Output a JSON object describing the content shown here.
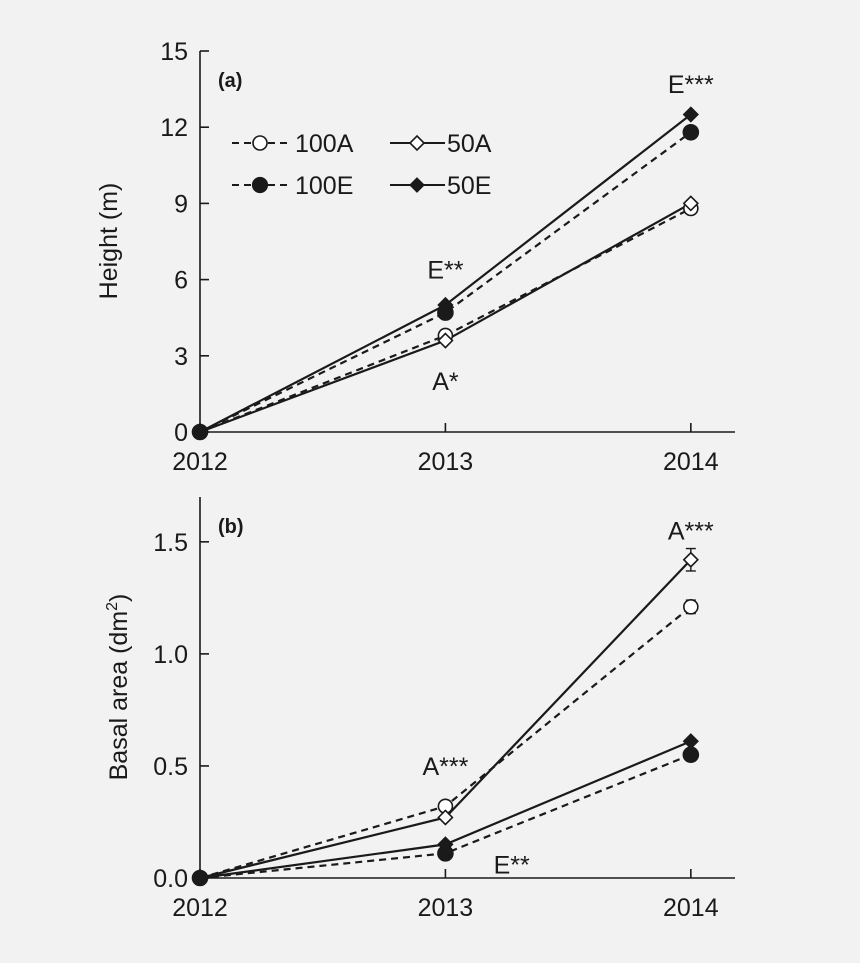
{
  "colors": {
    "background": "#f2f2f2",
    "ink": "#1a1a1a",
    "open_fill": "#ffffff"
  },
  "chart_data": [
    {
      "type": "line",
      "panel_label": "(a)",
      "ylabel": "Height (m)",
      "xlabel": "",
      "x": [
        2012,
        2013,
        2014
      ],
      "xlim": [
        2012,
        2014.18
      ],
      "ylim": [
        0,
        15
      ],
      "yticks": [
        0,
        3,
        6,
        9,
        12,
        15
      ],
      "grid": false,
      "legend_placement": "top-left",
      "series": [
        {
          "name": "100A",
          "values": [
            0,
            3.8,
            8.8
          ],
          "marker": "circle",
          "filled": false,
          "dashed": true
        },
        {
          "name": "50A",
          "values": [
            0,
            3.6,
            9.0
          ],
          "marker": "diamond",
          "filled": false,
          "dashed": false
        },
        {
          "name": "100E",
          "values": [
            0,
            4.7,
            11.8
          ],
          "marker": "circle",
          "filled": true,
          "dashed": true
        },
        {
          "name": "50E",
          "values": [
            0,
            5.0,
            12.5
          ],
          "marker": "diamond",
          "filled": true,
          "dashed": false
        }
      ],
      "annotations": [
        {
          "text": "E***",
          "x": 2014,
          "y": 13.7
        },
        {
          "text": "E**",
          "x": 2013,
          "y": 6.4
        },
        {
          "text": "A*",
          "x": 2013,
          "y": 2.0
        }
      ]
    },
    {
      "type": "line",
      "panel_label": "(b)",
      "ylabel": "Basal area (dm",
      "ylabel_superscript": "2",
      "ylabel_suffix": ")",
      "xlabel": "",
      "x": [
        2012,
        2013,
        2014
      ],
      "xlim": [
        2012,
        2014.18
      ],
      "ylim": [
        0,
        1.7
      ],
      "yticks": [
        0,
        0.5,
        1.0,
        1.5
      ],
      "ytick_labels": [
        "0.0",
        "0.5",
        "1.0",
        "1.5"
      ],
      "grid": false,
      "series": [
        {
          "name": "100A",
          "values": [
            0,
            0.32,
            1.21
          ],
          "marker": "circle",
          "filled": false,
          "dashed": true,
          "error": [
            0,
            0,
            0.03
          ]
        },
        {
          "name": "50A",
          "values": [
            0,
            0.27,
            1.42
          ],
          "marker": "diamond",
          "filled": false,
          "dashed": false,
          "error": [
            0,
            0,
            0.05
          ]
        },
        {
          "name": "100E",
          "values": [
            0,
            0.11,
            0.55
          ],
          "marker": "circle",
          "filled": true,
          "dashed": true,
          "error": [
            0,
            0,
            0
          ]
        },
        {
          "name": "50E",
          "values": [
            0,
            0.15,
            0.61
          ],
          "marker": "diamond",
          "filled": true,
          "dashed": false,
          "error": [
            0,
            0,
            0
          ]
        }
      ],
      "annotations": [
        {
          "text": "A***",
          "x": 2014,
          "y": 1.55
        },
        {
          "text": "A***",
          "x": 2013,
          "y": 0.5
        },
        {
          "text": "E**",
          "x": 2013.27,
          "y": 0.06
        }
      ]
    }
  ]
}
